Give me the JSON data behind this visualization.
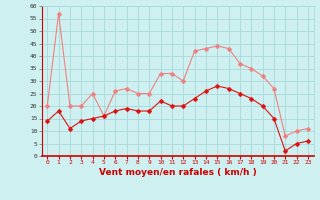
{
  "hours": [
    0,
    1,
    2,
    3,
    4,
    5,
    6,
    7,
    8,
    9,
    10,
    11,
    12,
    13,
    14,
    15,
    16,
    17,
    18,
    19,
    20,
    21,
    22,
    23
  ],
  "vent_moyen": [
    14,
    18,
    11,
    14,
    15,
    16,
    18,
    19,
    18,
    18,
    22,
    20,
    20,
    23,
    26,
    28,
    27,
    25,
    23,
    20,
    15,
    2,
    5,
    6
  ],
  "rafales": [
    20,
    57,
    20,
    20,
    25,
    16,
    26,
    27,
    25,
    25,
    33,
    33,
    30,
    42,
    43,
    44,
    43,
    37,
    35,
    32,
    27,
    8,
    10,
    11
  ],
  "bg_color": "#cff0f0",
  "grid_color": "#a8d8d8",
  "line_moyen_color": "#dd1111",
  "line_rafales_color": "#f08080",
  "xlabel": "Vent moyen/en rafales ( km/h )",
  "xlabel_color": "#cc0000",
  "ylim": [
    0,
    60
  ],
  "yticks": [
    0,
    5,
    10,
    15,
    20,
    25,
    30,
    35,
    40,
    45,
    50,
    55,
    60
  ],
  "xlim_min": -0.5,
  "xlim_max": 23.5
}
